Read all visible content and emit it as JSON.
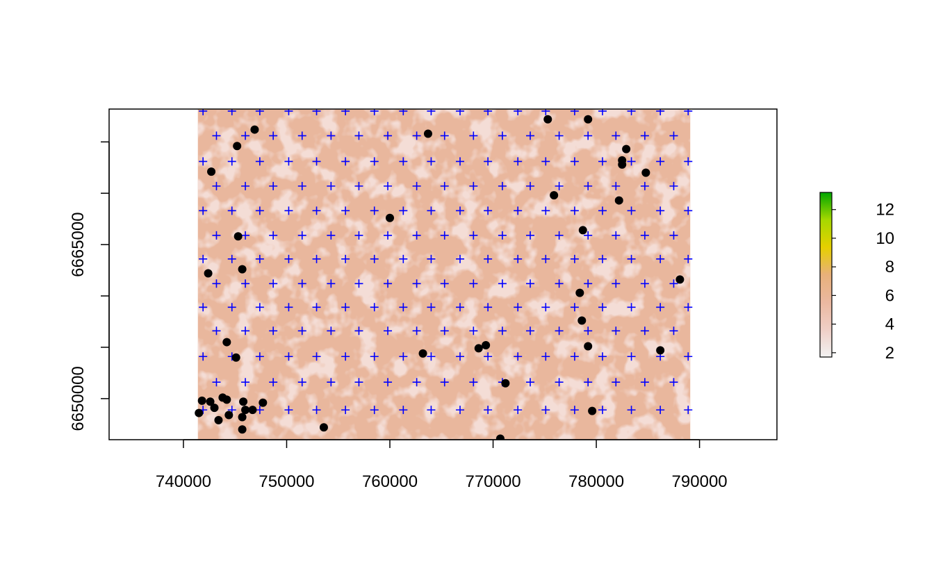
{
  "chart_data": {
    "type": "scatter",
    "xlim": [
      732800,
      797500
    ],
    "ylim": [
      6646000,
      6678200
    ],
    "xticks": [
      740000,
      750000,
      760000,
      770000,
      780000,
      790000
    ],
    "yticks": [
      6650000,
      {
        "value": 6655000,
        "label": null
      },
      {
        "value": 6660000,
        "label": null
      },
      6665000,
      {
        "value": 6670000,
        "label": null
      },
      {
        "value": 6675000,
        "label": null
      }
    ],
    "raster": {
      "xlim": [
        741400,
        789100
      ],
      "ylim": [
        6646000,
        6678200
      ],
      "color": "#e9b79d",
      "patch_color": "#f4ddd6"
    },
    "colorbar": {
      "zlim": [
        1.7,
        13.2
      ],
      "ticks": [
        2,
        4,
        6,
        8,
        10,
        12
      ],
      "colors": [
        "#f2f2f2",
        "#efcfc6",
        "#ebb8a0",
        "#e8b07a",
        "#e6d000",
        "#a6d800",
        "#00a600"
      ]
    },
    "series": [
      {
        "marker": "cross",
        "color": "#0000ff",
        "x": [
          741900,
          744700,
          747400,
          750200,
          752900,
          755700,
          758500,
          761300,
          764000,
          766800,
          769500,
          772400,
          775100,
          777900,
          780600,
          783400,
          786200,
          788900,
          743200,
          746000,
          748700,
          751500,
          754300,
          757000,
          759800,
          762600,
          765300,
          768100,
          770900,
          773600,
          776400,
          779200,
          781900,
          784700,
          787500,
          741900,
          744700,
          747400,
          750200,
          752900,
          755700,
          758500,
          761300,
          764000,
          766800,
          769500,
          772400,
          775100,
          777900,
          780600,
          783400,
          786200,
          788900,
          743200,
          746000,
          748700,
          751500,
          754300,
          757000,
          759800,
          762600,
          765300,
          768100,
          770900,
          773600,
          776400,
          779200,
          781900,
          784700,
          787500,
          741900,
          744700,
          747400,
          750200,
          752900,
          755700,
          758500,
          761300,
          764000,
          766800,
          769500,
          772400,
          775100,
          777900,
          780600,
          783400,
          786200,
          788900,
          743200,
          746000,
          748700,
          751500,
          754300,
          757000,
          759800,
          762600,
          765300,
          768100,
          770900,
          773600,
          776400,
          779200,
          781900,
          784700,
          787500,
          741900,
          744700,
          747400,
          750200,
          752900,
          755700,
          758500,
          761300,
          764000,
          766800,
          769500,
          772400,
          775100,
          777900,
          780600,
          783400,
          786200,
          788900,
          743200,
          746000,
          748700,
          751500,
          754300,
          757000,
          759800,
          762600,
          765300,
          768100,
          770900,
          773600,
          776400,
          779200,
          781900,
          784700,
          787500,
          741900,
          744700,
          747400,
          750200,
          752900,
          755700,
          758500,
          761300,
          764000,
          766800,
          769500,
          772400,
          775100,
          777900,
          780600,
          783400,
          786200,
          788900,
          743200,
          746000,
          748700,
          751500,
          754300,
          757000,
          759800,
          762600,
          765300,
          768100,
          770900,
          773600,
          776400,
          779200,
          781900,
          784700,
          787500,
          741900,
          744700,
          747400,
          750200,
          752900,
          755700,
          758500,
          761300,
          764000,
          766800,
          769500,
          772400,
          775100,
          777900,
          780600,
          783400,
          786200,
          788900,
          743200,
          746000,
          748700,
          751500,
          754300,
          757000,
          759800,
          762600,
          765300,
          768100,
          770900,
          773600,
          776400,
          779200,
          781900,
          784700,
          787500,
          741900,
          744700,
          747400,
          750200,
          752900,
          755700,
          758500,
          761300,
          764000,
          766800,
          769500,
          772400,
          775100,
          777900,
          780600,
          783400,
          786200,
          788900
        ],
        "y": [
          6678000,
          6678000,
          6678000,
          6678000,
          6678000,
          6678000,
          6678000,
          6678000,
          6678000,
          6678000,
          6678000,
          6678000,
          6678000,
          6678000,
          6678000,
          6678000,
          6678000,
          6678000,
          6675600,
          6675600,
          6675600,
          6675600,
          6675600,
          6675600,
          6675600,
          6675600,
          6675600,
          6675600,
          6675600,
          6675600,
          6675600,
          6675600,
          6675600,
          6675600,
          6675600,
          6673100,
          6673100,
          6673100,
          6673100,
          6673100,
          6673100,
          6673100,
          6673100,
          6673100,
          6673100,
          6673100,
          6673100,
          6673100,
          6673100,
          6673100,
          6673100,
          6673100,
          6673100,
          6670700,
          6670700,
          6670700,
          6670700,
          6670700,
          6670700,
          6670700,
          6670700,
          6670700,
          6670700,
          6670700,
          6670700,
          6670700,
          6670700,
          6670700,
          6670700,
          6670700,
          6668300,
          6668300,
          6668300,
          6668300,
          6668300,
          6668300,
          6668300,
          6668300,
          6668300,
          6668300,
          6668300,
          6668300,
          6668300,
          6668300,
          6668300,
          6668300,
          6668300,
          6668300,
          6665900,
          6665900,
          6665900,
          6665900,
          6665900,
          6665900,
          6665900,
          6665900,
          6665900,
          6665900,
          6665900,
          6665900,
          6665900,
          6665900,
          6665900,
          6665900,
          6665900,
          6663600,
          6663600,
          6663600,
          6663600,
          6663600,
          6663600,
          6663600,
          6663600,
          6663600,
          6663600,
          6663600,
          6663600,
          6663600,
          6663600,
          6663600,
          6663600,
          6663600,
          6663600,
          6661200,
          6661200,
          6661200,
          6661200,
          6661200,
          6661200,
          6661200,
          6661200,
          6661200,
          6661200,
          6661200,
          6661200,
          6661200,
          6661200,
          6661200,
          6661200,
          6661200,
          6658900,
          6658900,
          6658900,
          6658900,
          6658900,
          6658900,
          6658900,
          6658900,
          6658900,
          6658900,
          6658900,
          6658900,
          6658900,
          6658900,
          6658900,
          6658900,
          6658900,
          6658900,
          6656600,
          6656600,
          6656600,
          6656600,
          6656600,
          6656600,
          6656600,
          6656600,
          6656600,
          6656600,
          6656600,
          6656600,
          6656600,
          6656600,
          6656600,
          6656600,
          6656600,
          6654100,
          6654100,
          6654100,
          6654100,
          6654100,
          6654100,
          6654100,
          6654100,
          6654100,
          6654100,
          6654100,
          6654100,
          6654100,
          6654100,
          6654100,
          6654100,
          6654100,
          6654100,
          6651600,
          6651600,
          6651600,
          6651600,
          6651600,
          6651600,
          6651600,
          6651600,
          6651600,
          6651600,
          6651600,
          6651600,
          6651600,
          6651600,
          6651600,
          6651600,
          6651600,
          6648900,
          6648900,
          6648900,
          6648900,
          6648900,
          6648900,
          6648900,
          6648900,
          6648900,
          6648900,
          6648900,
          6648900,
          6648900,
          6648900,
          6648900,
          6648900,
          6648900,
          6648900
        ]
      },
      {
        "marker": "dot",
        "color": "#000000",
        "x": [
          746900,
          745200,
          742700,
          763700,
          775300,
          779200,
          782900,
          782500,
          782500,
          784800,
          775900,
          782200,
          760000,
          778700,
          745300,
          742400,
          745700,
          788100,
          778400,
          778600,
          744200,
          745100,
          763200,
          768600,
          769300,
          779200,
          786200,
          771200,
          779600,
          753600,
          770700,
          741800,
          742600,
          743000,
          741500,
          743800,
          744200,
          743400,
          744400,
          745800,
          746000,
          746700,
          747700,
          745700,
          745700
        ],
        "y": [
          6676200,
          6674600,
          6672100,
          6675800,
          6677200,
          6677200,
          6674300,
          6673200,
          6672800,
          6672000,
          6669800,
          6669300,
          6667600,
          6666400,
          6665800,
          6662200,
          6662600,
          6661600,
          6660300,
          6657600,
          6655500,
          6654000,
          6654400,
          6654900,
          6655200,
          6655100,
          6654700,
          6651500,
          6648800,
          6647200,
          6646100,
          6649800,
          6649700,
          6649100,
          6648600,
          6650100,
          6649900,
          6647900,
          6648400,
          6649700,
          6648900,
          6648900,
          6649600,
          6648200,
          6647000
        ]
      }
    ]
  }
}
